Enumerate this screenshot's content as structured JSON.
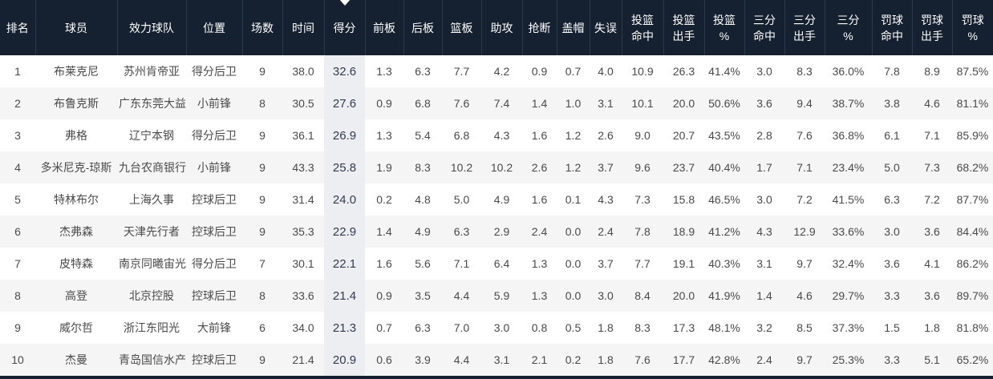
{
  "colors": {
    "header_bg": "#152030",
    "header_divider": "#2b3a4b",
    "header_text": "#ffffff",
    "row_alt_bg": "#f5f5f5",
    "sorted_col_bg": "#eceef1",
    "text": "#4a4a4a"
  },
  "table": {
    "sort": {
      "column": "得分",
      "column_index": 6,
      "direction": "desc"
    },
    "columns": [
      {
        "key": "rank",
        "label": "排名"
      },
      {
        "key": "player",
        "label": "球员"
      },
      {
        "key": "team",
        "label": "效力球队"
      },
      {
        "key": "position",
        "label": "位置"
      },
      {
        "key": "games",
        "label": "场数"
      },
      {
        "key": "minutes",
        "label": "时间"
      },
      {
        "key": "points",
        "label": "得分"
      },
      {
        "key": "oreb",
        "label": "前板"
      },
      {
        "key": "dreb",
        "label": "后板"
      },
      {
        "key": "reb",
        "label": "篮板"
      },
      {
        "key": "ast",
        "label": "助攻"
      },
      {
        "key": "stl",
        "label": "抢断"
      },
      {
        "key": "blk",
        "label": "盖帽"
      },
      {
        "key": "tov",
        "label": "失误"
      },
      {
        "key": "fgm",
        "label": "投篮\n命中"
      },
      {
        "key": "fga",
        "label": "投篮\n出手"
      },
      {
        "key": "fgpct",
        "label": "投篮\n%"
      },
      {
        "key": "tpm",
        "label": "三分\n命中"
      },
      {
        "key": "tpa",
        "label": "三分\n出手"
      },
      {
        "key": "tppct",
        "label": "三分\n%"
      },
      {
        "key": "ftm",
        "label": "罚球\n命中"
      },
      {
        "key": "fta",
        "label": "罚球\n出手"
      },
      {
        "key": "ftpct",
        "label": "罚球\n%"
      }
    ],
    "rows": [
      [
        "1",
        "布莱克尼",
        "苏州肯帝亚",
        "得分后卫",
        "9",
        "38.0",
        "32.6",
        "1.3",
        "6.3",
        "7.7",
        "4.2",
        "0.9",
        "0.7",
        "4.0",
        "10.9",
        "26.3",
        "41.4%",
        "3.0",
        "8.3",
        "36.0%",
        "7.8",
        "8.9",
        "87.5%"
      ],
      [
        "2",
        "布鲁克斯",
        "广东东莞大益",
        "小前锋",
        "8",
        "30.5",
        "27.6",
        "0.9",
        "6.8",
        "7.6",
        "7.4",
        "1.4",
        "1.0",
        "3.1",
        "10.1",
        "20.0",
        "50.6%",
        "3.6",
        "9.4",
        "38.7%",
        "3.8",
        "4.6",
        "81.1%"
      ],
      [
        "3",
        "弗格",
        "辽宁本钢",
        "得分后卫",
        "9",
        "36.1",
        "26.9",
        "1.3",
        "5.4",
        "6.8",
        "4.3",
        "1.6",
        "1.2",
        "2.6",
        "9.0",
        "20.7",
        "43.5%",
        "2.8",
        "7.6",
        "36.8%",
        "6.1",
        "7.1",
        "85.9%"
      ],
      [
        "4",
        "多米尼克-琼斯",
        "九台农商银行",
        "小前锋",
        "9",
        "43.3",
        "25.8",
        "1.9",
        "8.3",
        "10.2",
        "10.2",
        "2.6",
        "1.2",
        "3.7",
        "9.6",
        "23.7",
        "40.4%",
        "1.7",
        "7.1",
        "23.4%",
        "5.0",
        "7.3",
        "68.2%"
      ],
      [
        "5",
        "特林布尔",
        "上海久事",
        "控球后卫",
        "9",
        "31.4",
        "24.0",
        "0.2",
        "4.8",
        "5.0",
        "4.9",
        "1.6",
        "0.1",
        "4.3",
        "7.3",
        "15.8",
        "46.5%",
        "3.0",
        "7.2",
        "41.5%",
        "6.3",
        "7.2",
        "87.7%"
      ],
      [
        "6",
        "杰弗森",
        "天津先行者",
        "控球后卫",
        "9",
        "35.3",
        "22.9",
        "1.4",
        "4.9",
        "6.3",
        "2.9",
        "2.4",
        "0.0",
        "2.4",
        "7.8",
        "18.9",
        "41.2%",
        "4.3",
        "12.9",
        "33.6%",
        "3.0",
        "3.6",
        "84.4%"
      ],
      [
        "7",
        "皮特森",
        "南京同曦宙光",
        "得分后卫",
        "7",
        "30.1",
        "22.1",
        "1.6",
        "5.6",
        "7.1",
        "6.4",
        "1.3",
        "0.0",
        "3.7",
        "7.7",
        "19.1",
        "40.3%",
        "3.1",
        "9.7",
        "32.4%",
        "3.6",
        "4.1",
        "86.2%"
      ],
      [
        "8",
        "高登",
        "北京控股",
        "控球后卫",
        "8",
        "33.6",
        "21.4",
        "0.9",
        "3.5",
        "4.4",
        "5.9",
        "1.3",
        "0.0",
        "3.0",
        "8.4",
        "20.0",
        "41.9%",
        "1.4",
        "4.6",
        "29.7%",
        "3.3",
        "3.6",
        "89.7%"
      ],
      [
        "9",
        "威尔哲",
        "浙江东阳光",
        "大前锋",
        "6",
        "34.0",
        "21.3",
        "0.7",
        "6.3",
        "7.0",
        "3.0",
        "0.8",
        "0.5",
        "1.8",
        "8.3",
        "17.3",
        "48.1%",
        "3.2",
        "8.5",
        "37.3%",
        "1.5",
        "1.8",
        "81.8%"
      ],
      [
        "10",
        "杰曼",
        "青岛国信水产",
        "控球后卫",
        "9",
        "21.4",
        "20.9",
        "0.6",
        "3.9",
        "4.4",
        "3.1",
        "2.1",
        "0.2",
        "1.8",
        "7.6",
        "17.7",
        "42.8%",
        "2.4",
        "9.7",
        "25.3%",
        "3.3",
        "5.1",
        "65.2%"
      ]
    ]
  }
}
